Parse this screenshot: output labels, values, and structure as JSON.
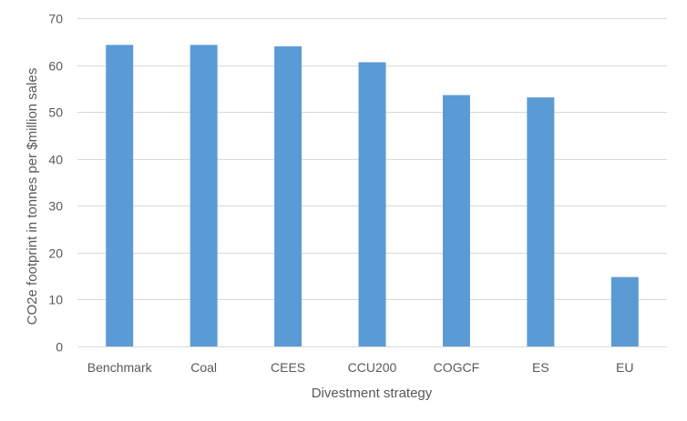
{
  "chart_data": {
    "type": "bar",
    "title": "",
    "xlabel": "Divestment strategy",
    "ylabel": "CO2e footprint in tonnes per $million sales",
    "categories": [
      "Benchmark",
      "Coal",
      "CEES",
      "CCU200",
      "COGCF",
      "ES",
      "EU"
    ],
    "series": [
      {
        "values": [
          64.3,
          64.3,
          64.0,
          60.6,
          53.6,
          53.1,
          14.8
        ]
      }
    ],
    "ylim": [
      0,
      70
    ],
    "yticks": [
      0,
      10,
      20,
      30,
      40,
      50,
      60,
      70
    ],
    "grid": true,
    "legend": "none",
    "colors": {
      "bar": "#5b9bd5",
      "grid": "#d9d9d9",
      "text": "#595959"
    }
  }
}
